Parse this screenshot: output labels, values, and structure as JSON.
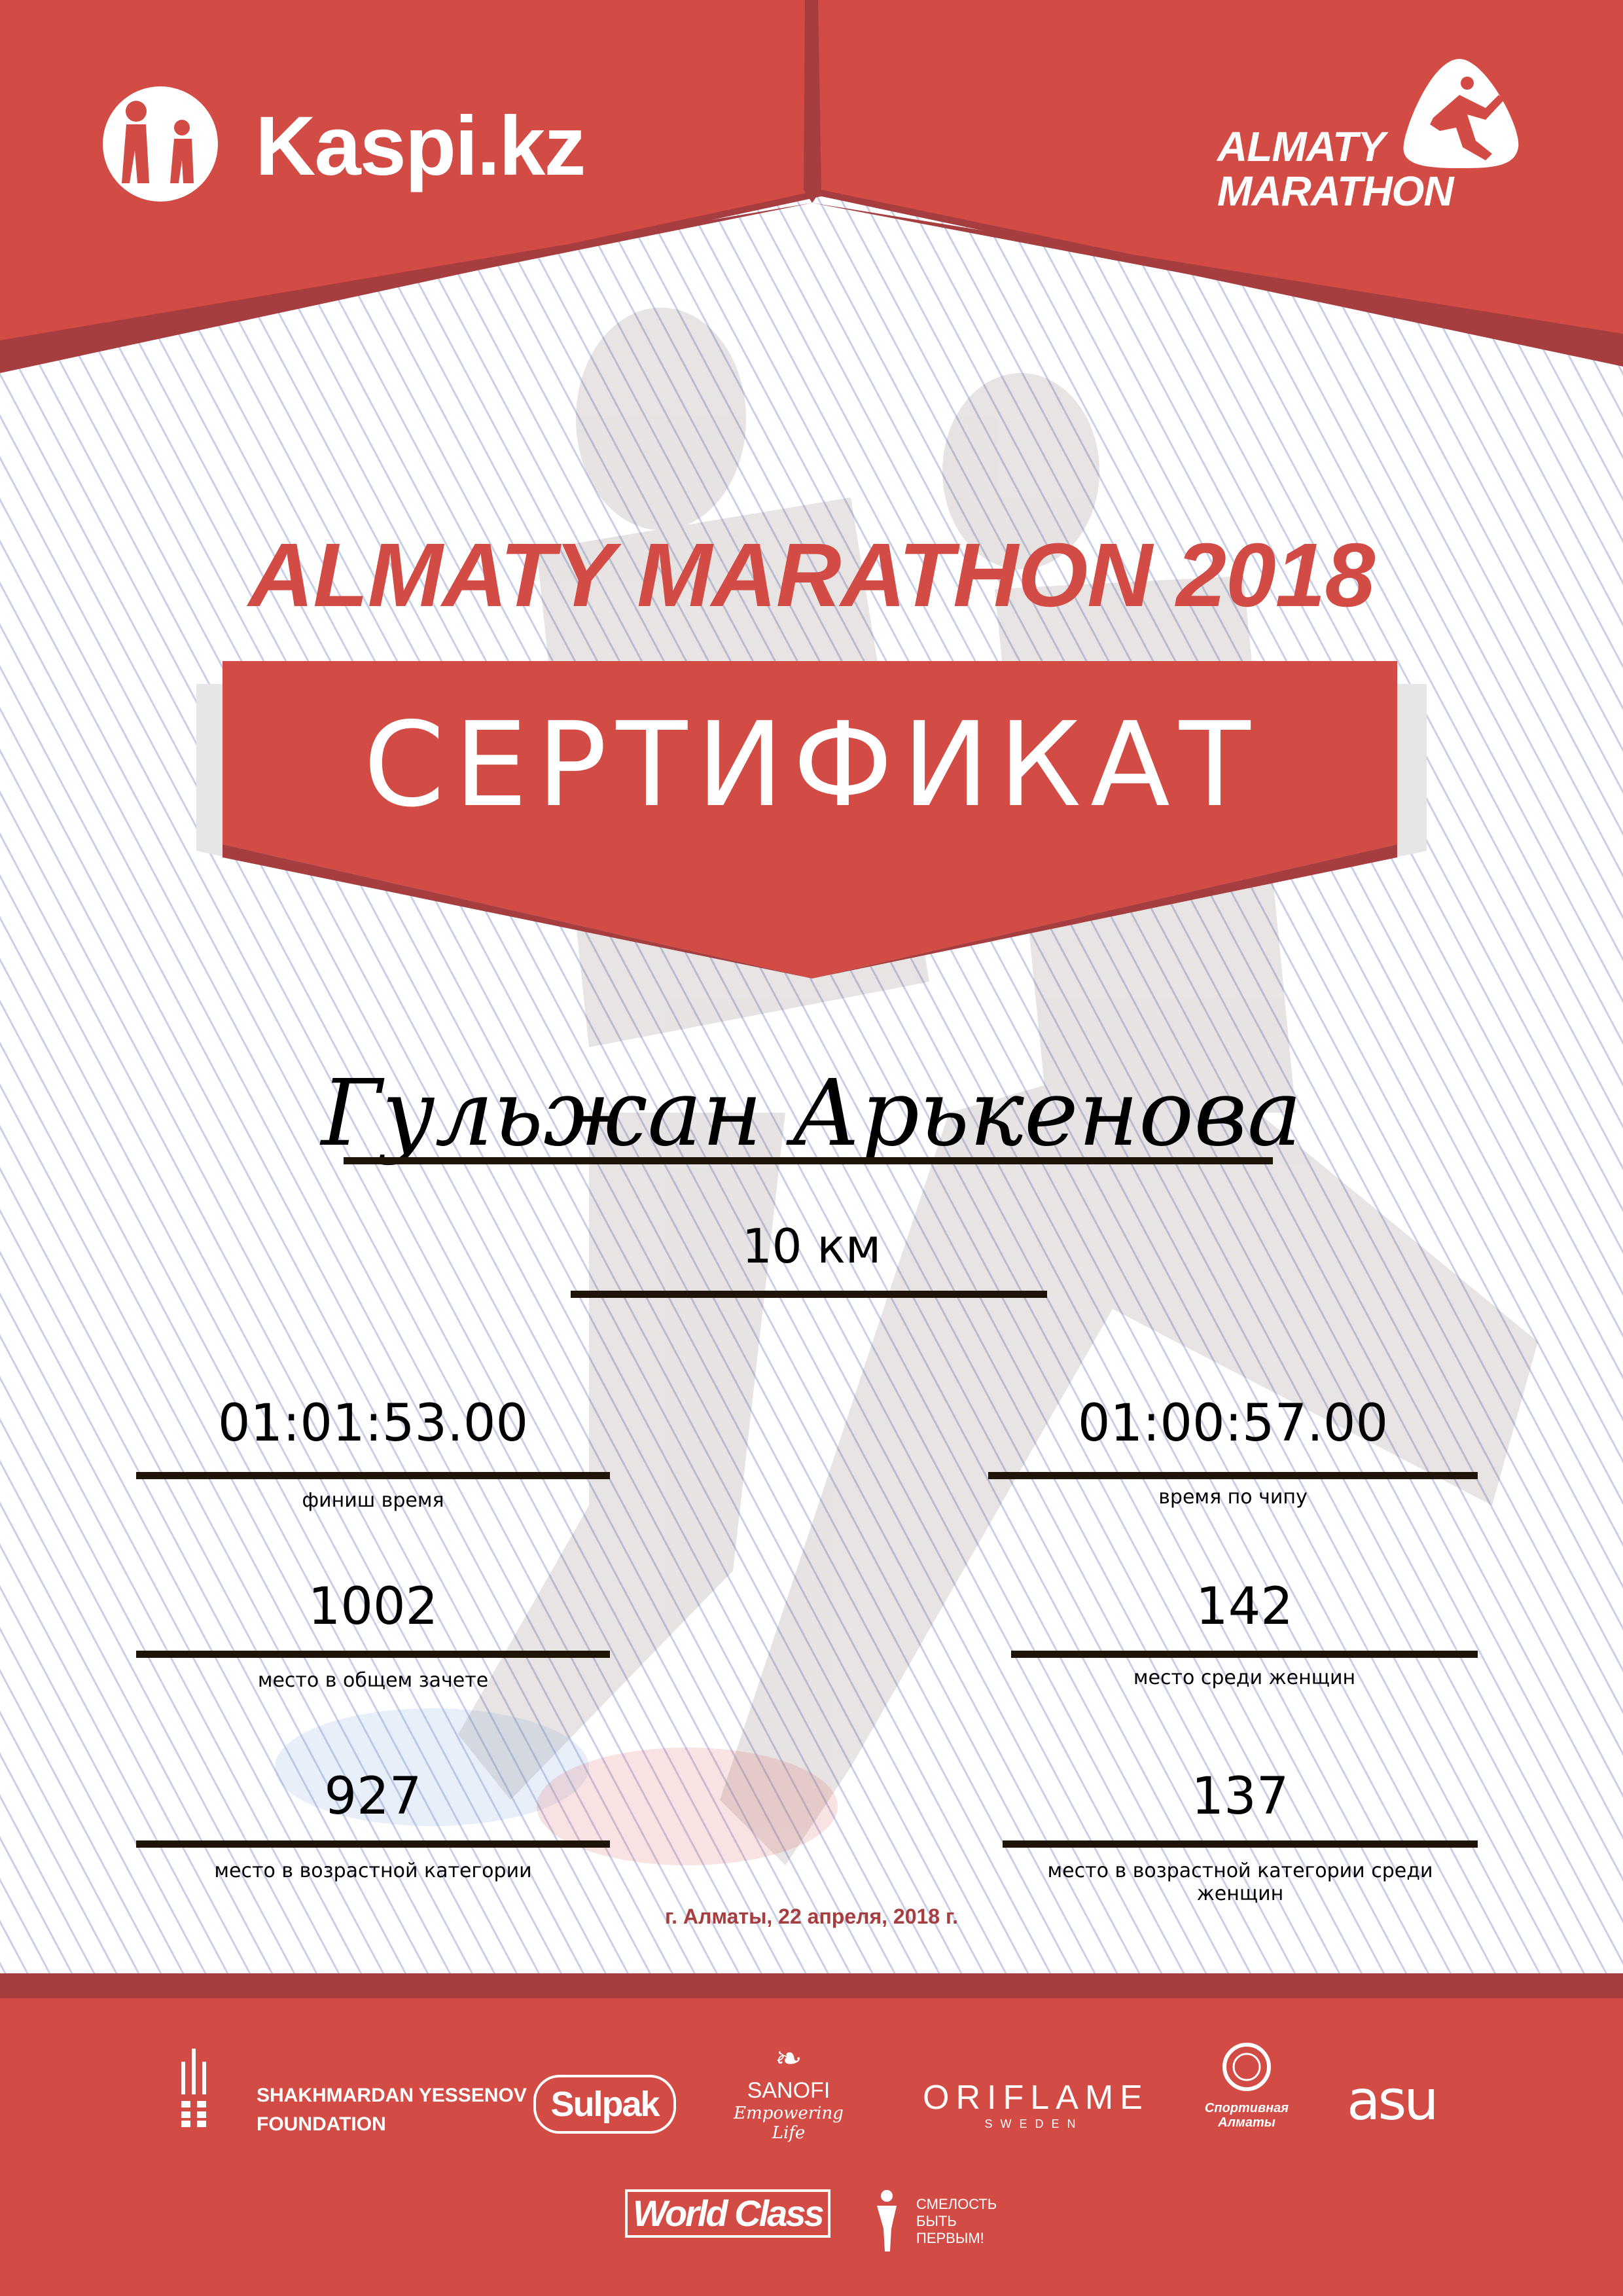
{
  "colors": {
    "brand_red": "#D24B45",
    "dark_red": "#A63D3F",
    "rule": "#1E1408"
  },
  "header": {
    "sponsor_logo": "Kaspi.kz",
    "event_logo": {
      "line1": "ALMATY",
      "line2": "MARATHON"
    }
  },
  "title": "ALMATY MARATHON 2018",
  "certificate_label": "СЕРТИФИКАТ",
  "participant_name": "Гульжан Арькенова",
  "distance": "10 км",
  "results": {
    "left": [
      {
        "value": "01:01:53.00",
        "label": "финиш время"
      },
      {
        "value": "1002",
        "label": "место в общем зачете"
      },
      {
        "value": "927",
        "label": "место в возрастной категории"
      }
    ],
    "right": [
      {
        "value": "01:00:57.00",
        "label": "время по чипу"
      },
      {
        "value": "142",
        "label": "место среди женщин"
      },
      {
        "value": "137",
        "label": "место в возрастной категории среди женщин"
      }
    ]
  },
  "date": "г. Алматы, 22 апреля, 2018 г.",
  "sponsors": {
    "yessenov": {
      "line1": "SHAKHMARDAN YESSENOV",
      "line2": "FOUNDATION"
    },
    "sulpak": "Sulpak",
    "sanofi": {
      "name": "SANOFI",
      "tagline": "Empowering Life"
    },
    "oriflame": {
      "name": "ORIFLAME",
      "sub": "SWEDEN"
    },
    "sport_almaty": {
      "line1": "Спортивная",
      "line2": "Алматы"
    },
    "asu": "asu",
    "worldclass": "World Class",
    "smelost": {
      "line1": "СМЕЛОСТЬ",
      "line2": "БЫТЬ",
      "line3": "ПЕРВЫМ!"
    }
  }
}
